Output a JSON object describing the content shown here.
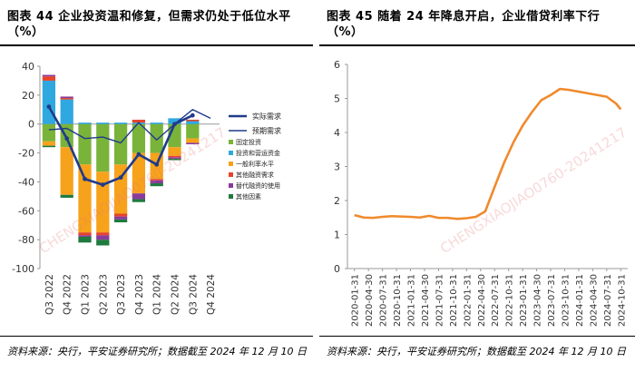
{
  "left": {
    "title_line1": "图表 44   企业投资温和修复，但需求仍处于低位水平",
    "title_line2": "（%）",
    "source": "资料来源：央行，平安证券研究所；数据截至 2024 年 12 月 10 日",
    "watermark": "CHENGXIAOJIAO0760-20241217"
  },
  "right": {
    "title": "图表 45   随着 24 年降息开启，企业借贷利率下行（%）",
    "source": "资料来源：央行，平安证券研究所；数据截至 2024 年 12 月 10 日",
    "watermark": "CHENGXIAOJIAO0760-20241217"
  },
  "chart_data": [
    {
      "type": "bar",
      "stacked": true,
      "categories": [
        "Q3 2022",
        "Q4 2022",
        "Q1 2023",
        "Q2 2023",
        "Q3 2023",
        "Q4 2023",
        "Q1 2024",
        "Q2 2024",
        "Q3 2024",
        "Q4 2024"
      ],
      "ylim": [
        -100,
        40
      ],
      "yticks": [
        40,
        20,
        0,
        -20,
        -40,
        -60,
        -80,
        -100
      ],
      "series": [
        {
          "name": "固定投资",
          "color": "#7ab33a",
          "values": [
            -12,
            -16,
            -28,
            -33,
            -28,
            -20,
            -20,
            -16,
            -10,
            null
          ]
        },
        {
          "name": "投资和营运资金",
          "color": "#2fa8e0",
          "values": [
            30,
            17,
            1,
            1,
            1,
            1,
            1,
            4,
            2,
            null
          ]
        },
        {
          "name": "一般利率水平",
          "color": "#f7a21b",
          "values": [
            -3,
            -33,
            -47,
            -42,
            -34,
            -28,
            -18,
            -6,
            -3,
            null
          ]
        },
        {
          "name": "其他融资需求",
          "color": "#e5442a",
          "values": [
            3,
            1,
            -2,
            -2,
            -2,
            2,
            -1,
            -1,
            1,
            null
          ]
        },
        {
          "name": "替代融资的使用",
          "color": "#8a3a9c",
          "values": [
            1,
            1,
            -1,
            -3,
            -2,
            -4,
            -2,
            -1,
            -1,
            null
          ]
        },
        {
          "name": "其他因素",
          "color": "#1f7a3e",
          "values": [
            -1,
            -2,
            -4,
            -4,
            -2,
            -2,
            -2,
            -1,
            0,
            null
          ]
        }
      ],
      "lines": [
        {
          "name": "实际需求",
          "color": "#1f3b8a",
          "values": [
            12,
            -10,
            -38,
            -42,
            -37,
            -21,
            -28,
            0,
            6,
            null
          ]
        },
        {
          "name": "预期需求",
          "color": "#1f3b8a",
          "values": [
            -4,
            -3,
            -10,
            -9,
            -13,
            1,
            -11,
            0,
            10,
            4
          ]
        }
      ]
    },
    {
      "type": "line",
      "ylim": [
        0,
        6
      ],
      "yticks": [
        0,
        1,
        2,
        3,
        4,
        5,
        6
      ],
      "x": [
        "2020-01",
        "2020-03",
        "2020-05",
        "2020-07",
        "2020-09",
        "2020-11",
        "2021-01",
        "2021-03",
        "2021-05",
        "2021-07",
        "2021-09",
        "2021-11",
        "2022-01",
        "2022-03",
        "2022-05",
        "2022-07",
        "2022-09",
        "2022-11",
        "2023-01",
        "2023-03",
        "2023-05",
        "2023-07",
        "2023-09",
        "2023-11",
        "2024-01",
        "2024-03",
        "2024-05",
        "2024-07",
        "2024-09",
        "2024-10"
      ],
      "x_tick_labels": [
        "2020-01-31",
        "2020-04-30",
        "2020-07-31",
        "2020-10-31",
        "2021-01-31",
        "2021-04-30",
        "2021-07-31",
        "2021-10-31",
        "2022-01-31",
        "2022-04-30",
        "2022-07-31",
        "2022-10-31",
        "2023-01-31",
        "2023-04-30",
        "2023-07-31",
        "2023-10-31",
        "2024-01-31",
        "2024-04-30",
        "2024-07-31",
        "2024-10-31"
      ],
      "series": [
        {
          "color": "#f08a2c",
          "values": [
            1.57,
            1.5,
            1.49,
            1.52,
            1.54,
            1.53,
            1.52,
            1.5,
            1.55,
            1.49,
            1.49,
            1.46,
            1.48,
            1.52,
            1.68,
            2.4,
            3.1,
            3.7,
            4.2,
            4.6,
            4.95,
            5.1,
            5.28,
            5.25,
            5.2,
            5.15,
            5.1,
            5.05,
            4.85,
            4.68
          ]
        }
      ]
    }
  ]
}
